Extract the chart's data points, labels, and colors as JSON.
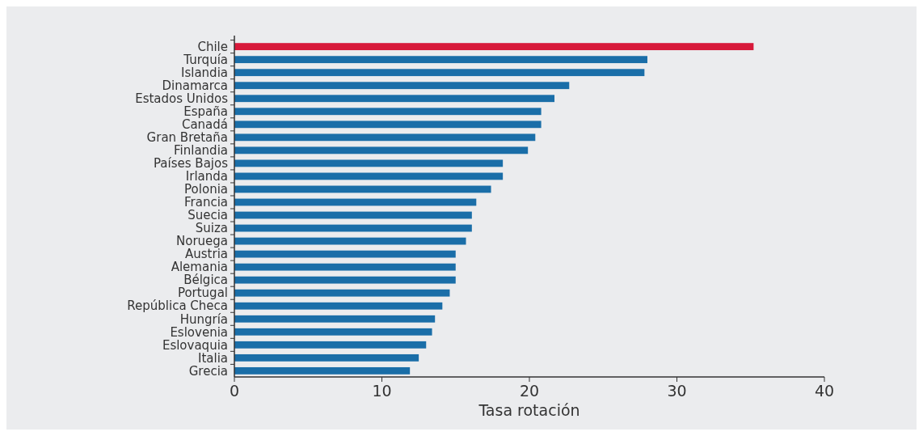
{
  "chart_data": {
    "type": "bar",
    "orientation": "horizontal",
    "xlabel": "Tasa rotación",
    "categories": [
      "Chile",
      "Turquía",
      "Islandia",
      "Dinamarca",
      "Estados Unidos",
      "España",
      "Canadá",
      "Gran Bretaña",
      "Finlandia",
      "Países Bajos",
      "Irlanda",
      "Polonia",
      "Francia",
      "Suecia",
      "Suiza",
      "Noruega",
      "Austria",
      "Alemania",
      "Bélgica",
      "Portugal",
      "República Checa",
      "Hungría",
      "Eslovenia",
      "Eslovaquia",
      "Italia",
      "Grecia"
    ],
    "values": [
      35.2,
      28.0,
      27.8,
      22.7,
      21.7,
      20.8,
      20.8,
      20.4,
      19.9,
      18.2,
      18.2,
      17.4,
      16.4,
      16.1,
      16.1,
      15.7,
      15.0,
      15.0,
      15.0,
      14.6,
      14.1,
      13.6,
      13.4,
      13.0,
      12.5,
      11.9
    ],
    "colors": [
      "#d7193a",
      "#1a6ea8",
      "#1a6ea8",
      "#1a6ea8",
      "#1a6ea8",
      "#1a6ea8",
      "#1a6ea8",
      "#1a6ea8",
      "#1a6ea8",
      "#1a6ea8",
      "#1a6ea8",
      "#1a6ea8",
      "#1a6ea8",
      "#1a6ea8",
      "#1a6ea8",
      "#1a6ea8",
      "#1a6ea8",
      "#1a6ea8",
      "#1a6ea8",
      "#1a6ea8",
      "#1a6ea8",
      "#1a6ea8",
      "#1a6ea8",
      "#1a6ea8",
      "#1a6ea8",
      "#1a6ea8"
    ],
    "xlim": [
      0,
      40
    ],
    "xticks": [
      0,
      10,
      20,
      30,
      40
    ]
  }
}
